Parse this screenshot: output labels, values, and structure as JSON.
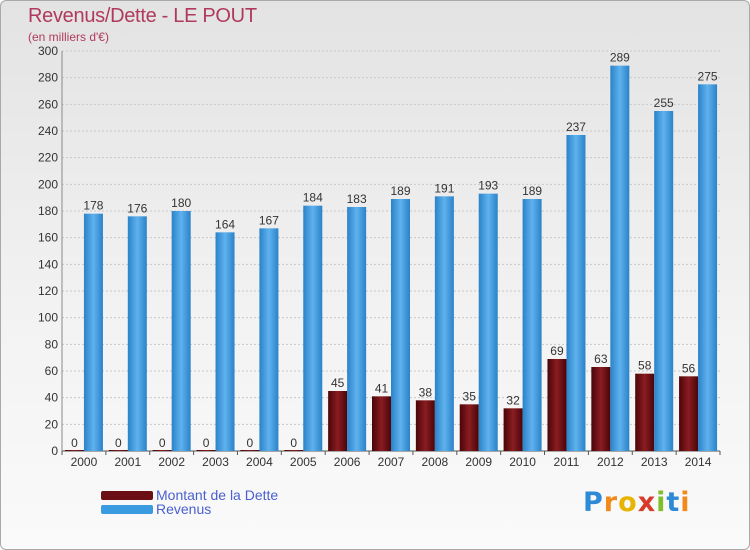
{
  "header": {
    "title": "Revenus/Dette - LE POUT",
    "subtitle": "(en milliers d'€)"
  },
  "legend": {
    "items": [
      {
        "label": "Montant de la Dette",
        "color": "#6b0f14"
      },
      {
        "label": "Revenus",
        "color": "#3a9be0"
      }
    ]
  },
  "logo": {
    "letters": [
      "P",
      "r",
      "o",
      "x",
      "i",
      "t",
      "i"
    ]
  },
  "chart_data": {
    "type": "bar",
    "title": "Revenus/Dette - LE POUT",
    "subtitle": "(en milliers d'€)",
    "categories": [
      "2000",
      "2001",
      "2002",
      "2003",
      "2004",
      "2005",
      "2006",
      "2007",
      "2008",
      "2009",
      "2010",
      "2011",
      "2012",
      "2013",
      "2014"
    ],
    "series": [
      {
        "name": "Montant de la Dette",
        "color": "#6b0f14",
        "values": [
          0,
          0,
          0,
          0,
          0,
          0,
          45,
          41,
          38,
          35,
          32,
          69,
          63,
          58,
          56
        ]
      },
      {
        "name": "Revenus",
        "color": "#3a9be0",
        "values": [
          178,
          176,
          180,
          164,
          167,
          184,
          183,
          189,
          191,
          193,
          189,
          237,
          289,
          255,
          275
        ]
      }
    ],
    "ylim": [
      0,
      300
    ],
    "yticks": [
      0,
      20,
      40,
      60,
      80,
      100,
      120,
      140,
      160,
      180,
      200,
      220,
      240,
      260,
      280,
      300
    ],
    "grid": true,
    "legend_position": "bottom-left"
  }
}
